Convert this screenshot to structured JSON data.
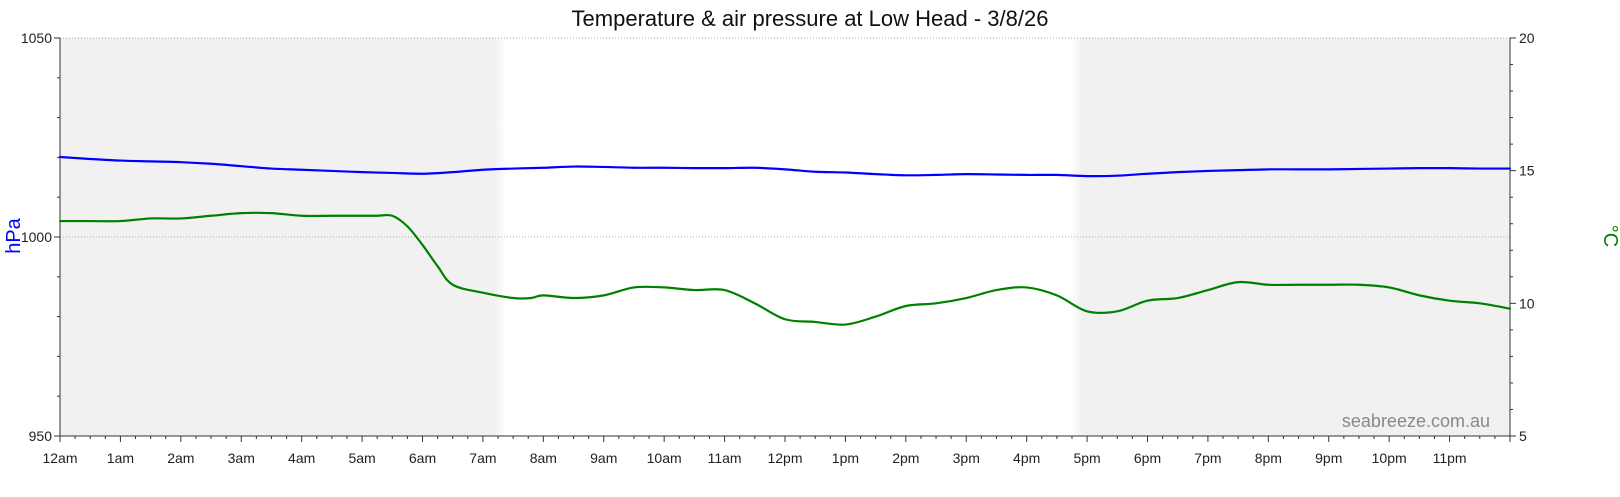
{
  "chart_data": {
    "type": "line",
    "title": "Temperature & air pressure at Low Head - 3/8/26",
    "left_axis": {
      "label": "hPa",
      "ylim": [
        950,
        1050
      ],
      "ticks": [
        950,
        1000,
        1050
      ],
      "color": "#0000ff"
    },
    "right_axis": {
      "label": "°C",
      "ylim": [
        5,
        20
      ],
      "ticks": [
        5,
        10,
        15,
        20
      ],
      "color": "#008000"
    },
    "x_tick_labels": [
      "12am",
      "1am",
      "2am",
      "3am",
      "4am",
      "5am",
      "6am",
      "7am",
      "8am",
      "9am",
      "10am",
      "11am",
      "12pm",
      "1pm",
      "2pm",
      "3pm",
      "4pm",
      "5pm",
      "6pm",
      "7pm",
      "8pm",
      "9pm",
      "10pm",
      "11pm"
    ],
    "x_range_hours": [
      0,
      24
    ],
    "night_shading": [
      [
        0,
        7.2
      ],
      [
        16.9,
        24
      ]
    ],
    "grid": "dotted-horizontal",
    "series": [
      {
        "axis": "left",
        "color": "#0000ff",
        "x": [
          0,
          0.5,
          1,
          1.5,
          2,
          2.5,
          3,
          3.5,
          4,
          4.5,
          5,
          5.5,
          6,
          6.5,
          7,
          7.5,
          8,
          8.5,
          9,
          9.5,
          10,
          10.5,
          11,
          11.5,
          12,
          12.5,
          13,
          13.5,
          14,
          14.5,
          15,
          15.5,
          16,
          16.5,
          17,
          17.5,
          18,
          18.5,
          19,
          19.5,
          20,
          20.5,
          21,
          21.5,
          22,
          22.5,
          23,
          23.5,
          24
        ],
        "values": [
          1020.1,
          1019.6,
          1019.2,
          1019.0,
          1018.8,
          1018.4,
          1017.8,
          1017.2,
          1016.9,
          1016.6,
          1016.3,
          1016.1,
          1015.9,
          1016.3,
          1016.9,
          1017.2,
          1017.4,
          1017.7,
          1017.6,
          1017.4,
          1017.4,
          1017.3,
          1017.3,
          1017.4,
          1017.0,
          1016.4,
          1016.2,
          1015.8,
          1015.5,
          1015.6,
          1015.8,
          1015.7,
          1015.6,
          1015.6,
          1015.3,
          1015.4,
          1015.9,
          1016.3,
          1016.6,
          1016.8,
          1017.0,
          1017.0,
          1017.0,
          1017.1,
          1017.2,
          1017.3,
          1017.3,
          1017.2,
          1017.2
        ],
        "style": "pressure"
      },
      {
        "axis": "right",
        "color": "#008000",
        "x": [
          0,
          0.5,
          1,
          1.5,
          2,
          2.5,
          3,
          3.5,
          4,
          4.5,
          5,
          5.25,
          5.5,
          5.75,
          6,
          6.25,
          6.5,
          7,
          7.5,
          7.8,
          8,
          8.5,
          9,
          9.5,
          10,
          10.5,
          11,
          11.5,
          12,
          12.5,
          13,
          13.5,
          14,
          14.5,
          15,
          15.5,
          16,
          16.5,
          17,
          17.5,
          18,
          18.5,
          19,
          19.5,
          20,
          20.5,
          21,
          21.5,
          22,
          22.5,
          23,
          23.5,
          24
        ],
        "values": [
          13.1,
          13.1,
          13.1,
          13.2,
          13.2,
          13.3,
          13.4,
          13.4,
          13.3,
          13.3,
          13.3,
          13.3,
          13.3,
          12.9,
          12.2,
          11.4,
          10.7,
          10.4,
          10.2,
          10.2,
          10.3,
          10.2,
          10.3,
          10.6,
          10.6,
          10.5,
          10.5,
          10.0,
          9.4,
          9.3,
          9.2,
          9.5,
          9.9,
          10.0,
          10.2,
          10.5,
          10.6,
          10.3,
          9.7,
          9.7,
          10.1,
          10.2,
          10.5,
          10.8,
          10.7,
          10.7,
          10.7,
          10.7,
          10.6,
          10.3,
          10.1,
          10.0,
          9.8
        ],
        "style": "temperature"
      }
    ],
    "watermark": "seabreeze.com.au"
  }
}
